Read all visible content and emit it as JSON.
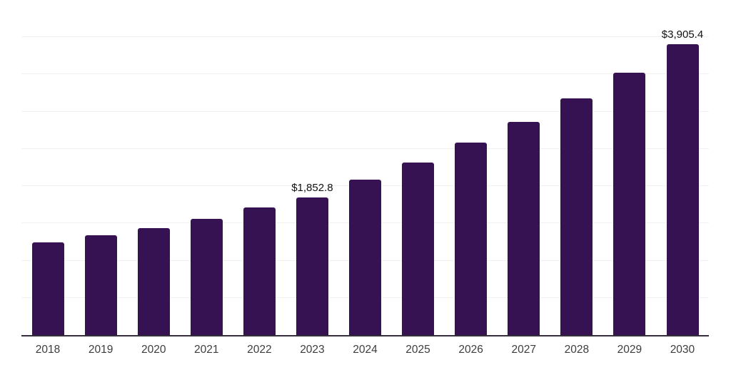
{
  "chart_data": {
    "type": "bar",
    "title": "",
    "categories": [
      "2018",
      "2019",
      "2020",
      "2021",
      "2022",
      "2023",
      "2024",
      "2025",
      "2026",
      "2027",
      "2028",
      "2029",
      "2030"
    ],
    "values": [
      1243,
      1341,
      1440,
      1565,
      1715,
      1852.8,
      2092,
      2319,
      2581,
      2868,
      3177,
      3526,
      3905.4
    ],
    "value_labels": {
      "2023": "$1,852.8",
      "2030": "$3,905.4"
    },
    "xlabel": "",
    "ylabel": "",
    "ylim": [
      0,
      4500
    ],
    "gridline_step": 500,
    "grid": true,
    "y_axis_tick_labels": "hidden",
    "legend": "none",
    "bar_color": "#371253",
    "axis_line_color": "#332e3a",
    "gridline_color": "#f1f1f1",
    "tick_label_color": "#3d3d3d",
    "value_label_color": "#111111",
    "background_color": "#ffffff"
  }
}
